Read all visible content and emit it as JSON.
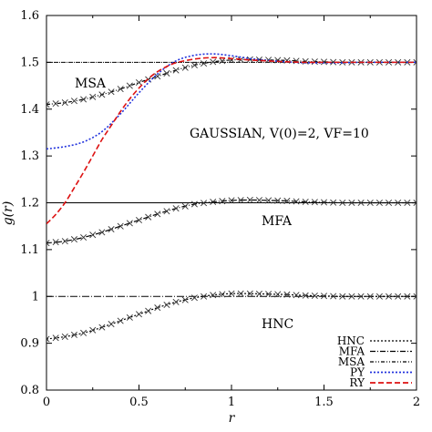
{
  "chart_data": {
    "type": "line",
    "title": "",
    "xlabel": "r",
    "ylabel": "g(r)",
    "xlim": [
      0,
      2
    ],
    "ylim": [
      0.8,
      1.6
    ],
    "grid": false,
    "legend_placement": "bottom-right",
    "x_ticks": [
      "0",
      "0.5",
      "1",
      "1.5",
      "2"
    ],
    "y_ticks": [
      "0.8",
      "0.9",
      "1",
      "1.1",
      "1.2",
      "1.3",
      "1.4",
      "1.5",
      "1.6"
    ],
    "annotations": [
      "MSA",
      "GAUSSIAN, V(0)=2, VF=10",
      "MFA",
      "HNC"
    ],
    "legend": [
      {
        "label": "HNC",
        "color": "#000000",
        "dash": "2,2"
      },
      {
        "label": "MFA",
        "color": "#000000",
        "dash": "6,2,1,2"
      },
      {
        "label": "MSA",
        "color": "#000000",
        "dash": "4,2,1,2,1,2"
      },
      {
        "label": "PY",
        "color": "#2233dd",
        "dash": "2,2"
      },
      {
        "label": "RY",
        "color": "#dd1111",
        "dash": "6,3"
      }
    ],
    "series": [
      {
        "name": "HNC",
        "color": "#000000",
        "dash": "2,2",
        "x": [
          0,
          0.1,
          0.2,
          0.3,
          0.4,
          0.5,
          0.6,
          0.7,
          0.8,
          0.9,
          1.0,
          1.1,
          1.2,
          1.3,
          1.4,
          1.5,
          1.6,
          1.7,
          1.8,
          1.9,
          2.0
        ],
        "y": [
          0.909,
          0.914,
          0.922,
          0.934,
          0.948,
          0.962,
          0.976,
          0.988,
          0.997,
          1.003,
          1.006,
          1.006,
          1.005,
          1.004,
          1.002,
          1.001,
          1.0,
          1.0,
          1.0,
          1.0,
          1.0
        ]
      },
      {
        "name": "MFA",
        "color": "#000000",
        "dash": "6,2,1,2",
        "x": [
          0,
          0.1,
          0.2,
          0.3,
          0.4,
          0.5,
          0.6,
          0.7,
          0.8,
          0.9,
          1.0,
          1.1,
          1.2,
          1.3,
          1.4,
          1.5,
          1.6,
          1.7,
          1.8,
          1.9,
          2.0
        ],
        "y": [
          1.114,
          1.118,
          1.126,
          1.137,
          1.15,
          1.163,
          1.176,
          1.188,
          1.197,
          1.202,
          1.205,
          1.206,
          1.205,
          1.204,
          1.202,
          1.201,
          1.2,
          1.2,
          1.2,
          1.2,
          1.2
        ]
      },
      {
        "name": "MSA",
        "color": "#000000",
        "dash": "4,2,1,2,1,2",
        "x": [
          0,
          0.1,
          0.2,
          0.3,
          0.4,
          0.5,
          0.6,
          0.7,
          0.8,
          0.9,
          1.0,
          1.1,
          1.2,
          1.3,
          1.4,
          1.5,
          1.6,
          1.7,
          1.8,
          1.9,
          2.0
        ],
        "y": [
          1.41,
          1.414,
          1.421,
          1.431,
          1.443,
          1.457,
          1.47,
          1.483,
          1.494,
          1.501,
          1.505,
          1.506,
          1.505,
          1.504,
          1.502,
          1.501,
          1.5,
          1.5,
          1.5,
          1.5,
          1.5
        ]
      },
      {
        "name": "PY",
        "color": "#2233dd",
        "dash": "2,2",
        "x": [
          0,
          0.1,
          0.2,
          0.3,
          0.4,
          0.5,
          0.6,
          0.7,
          0.8,
          0.9,
          1.0,
          1.1,
          1.2,
          1.3,
          1.4,
          1.5,
          1.6,
          1.7,
          1.8,
          1.9,
          2.0
        ],
        "y": [
          1.315,
          1.32,
          1.33,
          1.352,
          1.39,
          1.435,
          1.475,
          1.503,
          1.515,
          1.518,
          1.514,
          1.508,
          1.504,
          1.501,
          1.499,
          1.499,
          1.499,
          1.5,
          1.5,
          1.5,
          1.5
        ]
      },
      {
        "name": "RY",
        "color": "#dd1111",
        "dash": "6,3",
        "x": [
          0,
          0.05,
          0.1,
          0.15,
          0.2,
          0.25,
          0.3,
          0.35,
          0.4,
          0.45,
          0.5,
          0.55,
          0.6,
          0.65,
          0.7,
          0.8,
          0.9,
          1.0,
          1.1,
          1.2,
          1.3,
          1.4,
          1.5,
          1.6,
          1.8,
          2.0
        ],
        "y": [
          1.155,
          1.175,
          1.2,
          1.232,
          1.265,
          1.3,
          1.335,
          1.365,
          1.395,
          1.422,
          1.445,
          1.465,
          1.48,
          1.491,
          1.499,
          1.507,
          1.51,
          1.508,
          1.505,
          1.503,
          1.501,
          1.5,
          1.5,
          1.5,
          1.5,
          1.5
        ]
      }
    ],
    "hlines": [
      {
        "y": 1.5,
        "color": "#000000",
        "dash": "5,1,1,1"
      },
      {
        "y": 1.2,
        "color": "#000000",
        "dash": ""
      },
      {
        "y": 1.0,
        "color": "#000000",
        "dash": "8,2,1,2"
      }
    ]
  }
}
